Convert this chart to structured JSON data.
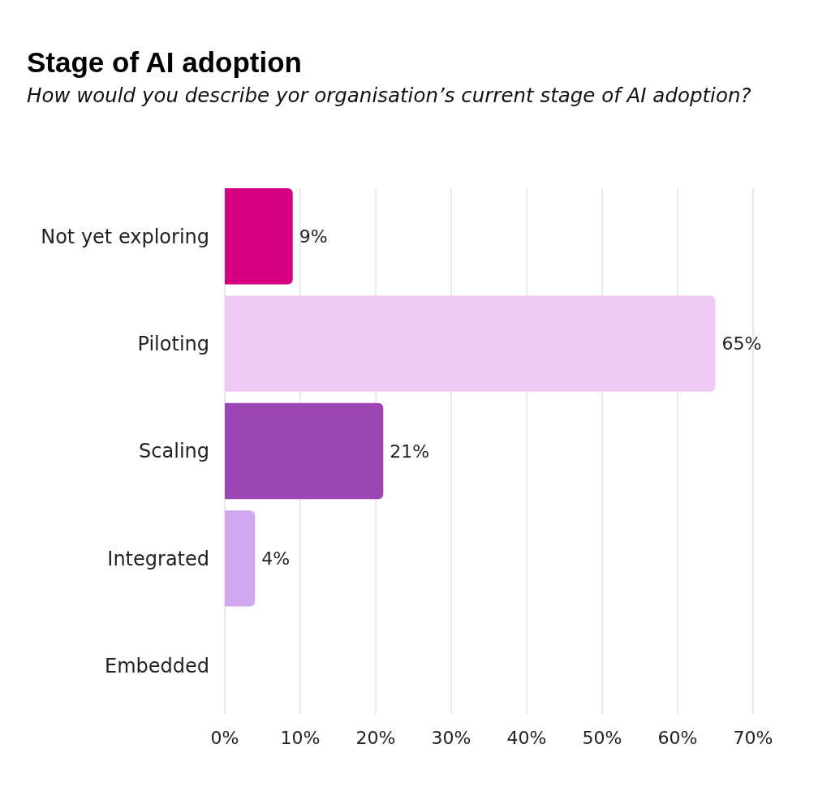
{
  "chart_data": {
    "type": "bar",
    "orientation": "horizontal",
    "title": "Stage of AI adoption",
    "subtitle": "How would you describe yor organisation’s current stage of AI adoption?",
    "categories": [
      "Not yet exploring",
      "Piloting",
      "Scaling",
      "Integrated",
      "Embedded"
    ],
    "values": [
      9,
      65,
      21,
      4,
      0
    ],
    "colors": [
      "#d5007f",
      "#eecaf5",
      "#9c45b3",
      "#cfa8f0",
      null
    ],
    "value_labels": [
      "9%",
      "65%",
      "21%",
      "4%",
      null
    ],
    "xlim": [
      0,
      70
    ],
    "xticks": [
      {
        "value": 0,
        "label": "0%"
      },
      {
        "value": 10,
        "label": "10%"
      },
      {
        "value": 20,
        "label": "20%"
      },
      {
        "value": 30,
        "label": "30%"
      },
      {
        "value": 40,
        "label": "40%"
      },
      {
        "value": 50,
        "label": "50%"
      },
      {
        "value": 60,
        "label": "60%"
      },
      {
        "value": 70,
        "label": "70%"
      }
    ],
    "grid": "x"
  }
}
